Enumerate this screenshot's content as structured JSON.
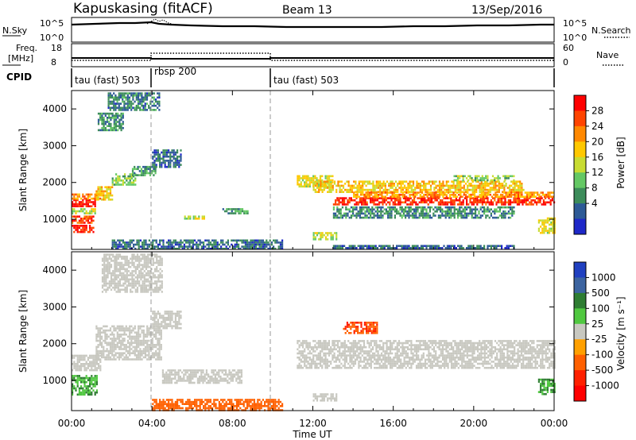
{
  "header": {
    "station": "Kapuskasing (fitACF)",
    "beam": "Beam 13",
    "date": "13/Sep/2016"
  },
  "top_panels": {
    "nsky_label": "N.Sky",
    "nsky_ticks": [
      "10^5",
      "10^0"
    ],
    "nsearch_label": "N.Search",
    "nsearch_ticks": [
      "10^5",
      "10^0"
    ],
    "freq_label_1": "Freq.",
    "freq_label_2": "[MHz]",
    "freq_ticks": [
      "18",
      "8"
    ],
    "nave_label": "Nave",
    "nave_ticks": [
      "60",
      "0"
    ],
    "cpid_label": "CPID",
    "cpid_segments": [
      {
        "label": "tau (fast) 503",
        "start_hour": 0,
        "end_hour": 4.0
      },
      {
        "label": "rbsp 200",
        "start_hour": 4.0,
        "end_hour": 10.0
      },
      {
        "label": "tau (fast) 503",
        "start_hour": 10.0,
        "end_hour": 24.0
      }
    ]
  },
  "x_axis": {
    "label": "Time UT",
    "ticks": [
      "00:00",
      "04:00",
      "08:00",
      "12:00",
      "16:00",
      "20:00",
      "00:00"
    ]
  },
  "power_colorbar": {
    "label": "Power [dB]",
    "ticks": [
      "28",
      "24",
      "20",
      "16",
      "12",
      "8",
      "4"
    ],
    "colors": [
      "#ff0000",
      "#ff4400",
      "#ff8800",
      "#ffc800",
      "#c8dc32",
      "#64c864",
      "#3c8c5a",
      "#2d5a96",
      "#1e28c8"
    ]
  },
  "velocity_colorbar": {
    "label": "Velocity [m s⁻¹]",
    "ticks": [
      "1000",
      "500",
      "100",
      "25",
      "-25",
      "-100",
      "-500",
      "-1000"
    ],
    "colors": [
      "#2040c0",
      "#3c64a0",
      "#2e7d32",
      "#50c840",
      "#c8c8c0",
      "#ffa000",
      "#ff6000",
      "#ff2000",
      "#ff0000"
    ]
  },
  "chart_data": [
    {
      "type": "heatmap",
      "title": "Power",
      "xlabel": "Time UT",
      "ylabel": "Slant Range [km]",
      "xlim": [
        0,
        24
      ],
      "ylim": [
        180,
        4500
      ],
      "y_ticks": [
        1000,
        2000,
        3000,
        4000
      ],
      "mode_change_hours": [
        4.0,
        10.0
      ],
      "colorbar_range_db": [
        0,
        30
      ],
      "blobs": [
        {
          "t0": 0.0,
          "t1": 1.2,
          "r0": 1350,
          "r1": 1550,
          "power": 28
        },
        {
          "t0": 0.0,
          "t1": 1.4,
          "r0": 1580,
          "r1": 1700,
          "power": 22
        },
        {
          "t0": 0.0,
          "t1": 1.1,
          "r0": 650,
          "r1": 850,
          "power": 28
        },
        {
          "t0": 0.0,
          "t1": 1.1,
          "r0": 880,
          "r1": 1100,
          "power": 26
        },
        {
          "t0": 0.0,
          "t1": 1.2,
          "r0": 1150,
          "r1": 1300,
          "power": 14
        },
        {
          "t0": 1.2,
          "t1": 2.0,
          "r0": 1550,
          "r1": 1900,
          "power": 18
        },
        {
          "t0": 2.0,
          "t1": 3.2,
          "r0": 1950,
          "r1": 2250,
          "power": 12
        },
        {
          "t0": 3.0,
          "t1": 4.2,
          "r0": 2200,
          "r1": 2450,
          "power": 9
        },
        {
          "t0": 1.3,
          "t1": 2.6,
          "r0": 3400,
          "r1": 3900,
          "power": 8
        },
        {
          "t0": 1.8,
          "t1": 4.4,
          "r0": 4000,
          "r1": 4450,
          "power": 7
        },
        {
          "t0": 4.0,
          "t1": 5.4,
          "r0": 2450,
          "r1": 2900,
          "power": 6
        },
        {
          "t0": 5.6,
          "t1": 6.6,
          "r0": 1000,
          "r1": 1100,
          "power": 14
        },
        {
          "t0": 7.5,
          "t1": 8.8,
          "r0": 1150,
          "r1": 1300,
          "power": 9
        },
        {
          "t0": 2.0,
          "t1": 10.5,
          "r0": 200,
          "r1": 450,
          "power": 6
        },
        {
          "t0": 11.2,
          "t1": 13.0,
          "r0": 1900,
          "r1": 2200,
          "power": 16
        },
        {
          "t0": 12.0,
          "t1": 22.5,
          "r0": 1750,
          "r1": 2050,
          "power": 18
        },
        {
          "t0": 13.0,
          "t1": 24.0,
          "r0": 1400,
          "r1": 1600,
          "power": 27
        },
        {
          "t0": 14.0,
          "t1": 24.0,
          "r0": 1600,
          "r1": 1750,
          "power": 21
        },
        {
          "t0": 13.0,
          "t1": 22.0,
          "r0": 1050,
          "r1": 1350,
          "power": 8
        },
        {
          "t0": 19.0,
          "t1": 22.0,
          "r0": 2050,
          "r1": 2200,
          "power": 13
        },
        {
          "t0": 12.0,
          "t1": 13.2,
          "r0": 450,
          "r1": 650,
          "power": 14
        },
        {
          "t0": 13.0,
          "t1": 22.0,
          "r0": 200,
          "r1": 300,
          "power": 6
        },
        {
          "t0": 23.2,
          "t1": 24.0,
          "r0": 650,
          "r1": 1050,
          "power": 16
        }
      ]
    },
    {
      "type": "heatmap",
      "title": "Velocity",
      "xlabel": "Time UT",
      "ylabel": "Slant Range [km]",
      "xlim": [
        0,
        24
      ],
      "ylim": [
        180,
        4500
      ],
      "y_ticks": [
        1000,
        2000,
        3000,
        4000
      ],
      "mode_change_hours": [
        4.0,
        10.0
      ],
      "colorbar_range_ms": [
        -1000,
        1000
      ],
      "blobs": [
        {
          "t0": 0.0,
          "t1": 1.4,
          "r0": 1300,
          "r1": 1700,
          "velocity": 0
        },
        {
          "t0": 0.0,
          "t1": 1.3,
          "r0": 600,
          "r1": 1150,
          "velocity": 60
        },
        {
          "t0": 1.2,
          "t1": 4.5,
          "r0": 1550,
          "r1": 2500,
          "velocity": 0
        },
        {
          "t0": 1.5,
          "t1": 4.5,
          "r0": 3400,
          "r1": 4450,
          "velocity": 0
        },
        {
          "t0": 4.0,
          "t1": 5.4,
          "r0": 2450,
          "r1": 2900,
          "velocity": 0
        },
        {
          "t0": 4.5,
          "t1": 8.5,
          "r0": 950,
          "r1": 1300,
          "velocity": 0
        },
        {
          "t0": 4.0,
          "t1": 10.5,
          "r0": 200,
          "r1": 500,
          "velocity": -80
        },
        {
          "t0": 11.2,
          "t1": 24.0,
          "r0": 1350,
          "r1": 2100,
          "velocity": 0
        },
        {
          "t0": 13.5,
          "t1": 15.2,
          "r0": 2300,
          "r1": 2600,
          "velocity": -300
        },
        {
          "t0": 12.0,
          "t1": 13.2,
          "r0": 450,
          "r1": 650,
          "velocity": 0
        },
        {
          "t0": 23.2,
          "t1": 24.0,
          "r0": 650,
          "r1": 1050,
          "velocity": 60
        }
      ]
    }
  ]
}
